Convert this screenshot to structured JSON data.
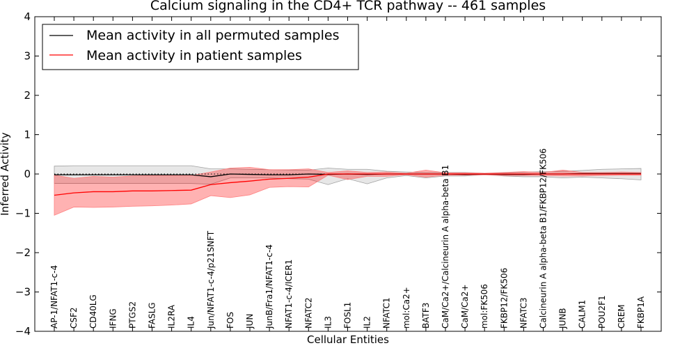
{
  "chart_data": {
    "type": "line",
    "title": "Calcium signaling in the CD4+ TCR pathway -- 461 samples",
    "xlabel": "Cellular Entities",
    "ylabel": "Inferred Activity",
    "ylim": [
      -4,
      4
    ],
    "yticks": [
      "4",
      "3",
      "2",
      "1",
      "0",
      "−1",
      "−2",
      "−3",
      "−4"
    ],
    "legend_position": "top-left",
    "categories": [
      "AP-1/NFAT1-c-4",
      "CSF2",
      "CD40LG",
      "IFNG",
      "PTGS2",
      "FASLG",
      "IL2RA",
      "IL4",
      "Jun/NFAT1-c-4/p21SNFT",
      "FOS",
      "JUN",
      "JunB/Fra1/NFAT1-c-4",
      "NFAT1-c-4/ICER1",
      "NFATC2",
      "IL3",
      "FOSL1",
      "IL2",
      "NFATC1",
      "mol:Ca2+",
      "BATF3",
      "CaM/Ca2+/Calcineurin A alpha-beta B1",
      "CaM/Ca2+",
      "mol:FK506",
      "FKBP12/FK506",
      "NFATC3",
      "Calcineurin A alpha-beta B1/FKBP12/FK506",
      "JUNB",
      "CALM1",
      "POU2F1",
      "CREM",
      "FKBP1A"
    ],
    "series": [
      {
        "name": "Mean activity in all permuted samples",
        "color": "#000000",
        "values": [
          -0.02,
          -0.02,
          -0.02,
          -0.02,
          -0.02,
          -0.02,
          -0.02,
          -0.02,
          -0.07,
          0.0,
          -0.01,
          -0.02,
          -0.02,
          0.0,
          -0.01,
          0.0,
          -0.01,
          0.0,
          0.0,
          0.0,
          0.0,
          -0.01,
          0.0,
          -0.01,
          -0.01,
          0.0,
          0.0,
          0.01,
          0.01,
          0.01,
          0.01
        ],
        "band_upper": [
          0.2,
          0.21,
          0.21,
          0.21,
          0.21,
          0.21,
          0.21,
          0.21,
          0.13,
          0.13,
          0.12,
          0.11,
          0.1,
          0.1,
          0.15,
          0.12,
          0.12,
          0.07,
          0.05,
          0.04,
          0.04,
          0.04,
          0.02,
          0.03,
          0.05,
          0.06,
          0.07,
          0.09,
          0.12,
          0.13,
          0.14
        ],
        "band_lower": [
          -0.24,
          -0.24,
          -0.24,
          -0.24,
          -0.24,
          -0.24,
          -0.24,
          -0.24,
          -0.26,
          -0.1,
          -0.1,
          -0.1,
          -0.12,
          -0.13,
          -0.27,
          -0.12,
          -0.25,
          -0.1,
          -0.04,
          -0.1,
          -0.05,
          -0.05,
          -0.02,
          -0.05,
          -0.07,
          -0.07,
          -0.1,
          -0.08,
          -0.1,
          -0.12,
          -0.15
        ]
      },
      {
        "name": "Mean activity in patient samples",
        "color": "#ff0000",
        "values": [
          -0.54,
          -0.48,
          -0.45,
          -0.45,
          -0.43,
          -0.43,
          -0.42,
          -0.41,
          -0.27,
          -0.22,
          -0.18,
          -0.13,
          -0.11,
          -0.08,
          0.0,
          0.0,
          0.0,
          0.0,
          0.0,
          0.0,
          0.0,
          0.0,
          0.0,
          0.0,
          0.0,
          0.0,
          0.0,
          0.0,
          0.0,
          0.0,
          0.0
        ],
        "band_upper": [
          -0.03,
          -0.11,
          -0.06,
          -0.08,
          -0.05,
          -0.04,
          -0.04,
          -0.04,
          0.05,
          0.15,
          0.17,
          0.11,
          0.11,
          0.13,
          0.04,
          0.08,
          0.04,
          0.05,
          0.02,
          0.1,
          0.03,
          0.03,
          0.02,
          0.04,
          0.06,
          0.04,
          0.1,
          0.04,
          0.04,
          0.05,
          0.04
        ],
        "band_lower": [
          -1.05,
          -0.84,
          -0.85,
          -0.84,
          -0.82,
          -0.81,
          -0.79,
          -0.76,
          -0.55,
          -0.6,
          -0.53,
          -0.34,
          -0.32,
          -0.33,
          -0.03,
          -0.14,
          -0.06,
          -0.06,
          -0.02,
          -0.08,
          -0.03,
          -0.03,
          -0.02,
          -0.04,
          -0.04,
          -0.04,
          -0.05,
          -0.05,
          -0.04,
          -0.03,
          -0.03
        ]
      }
    ]
  }
}
